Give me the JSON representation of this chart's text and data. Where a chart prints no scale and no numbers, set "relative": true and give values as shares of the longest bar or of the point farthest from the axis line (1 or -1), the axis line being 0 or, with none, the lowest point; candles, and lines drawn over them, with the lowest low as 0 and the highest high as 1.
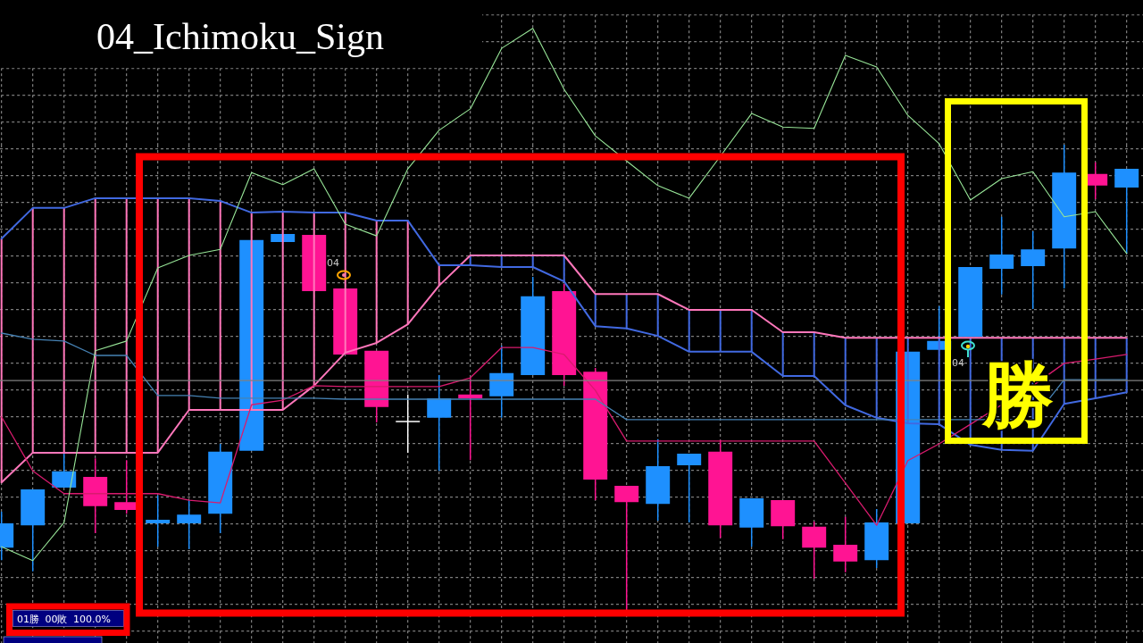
{
  "chart_data": {
    "type": "candlestick",
    "title": "04_Ichimoku_Sign",
    "relative": true,
    "grid": true,
    "categories": [
      null,
      null,
      null,
      null,
      null,
      null,
      null,
      null,
      null,
      null,
      null,
      null,
      null,
      null,
      null,
      null,
      null,
      null,
      null,
      null,
      null,
      null,
      null,
      null,
      null,
      null,
      null,
      null,
      null,
      null,
      null,
      null,
      null,
      null,
      null,
      null,
      null
    ],
    "ohlc": [
      [
        0.134,
        0.211,
        0.107,
        0.186
      ],
      [
        0.182,
        0.259,
        0.083,
        0.259
      ],
      [
        0.263,
        0.338,
        0.263,
        0.298
      ],
      [
        0.286,
        0.326,
        0.165,
        0.223
      ],
      [
        0.232,
        0.322,
        0.207,
        0.215
      ],
      [
        0.186,
        0.246,
        0.136,
        0.194
      ],
      [
        0.186,
        0.236,
        0.131,
        0.205
      ],
      [
        0.207,
        0.357,
        0.165,
        0.34
      ],
      [
        0.342,
        0.795,
        0.342,
        0.795
      ],
      [
        0.791,
        0.808,
        0.791,
        0.808
      ],
      [
        0.806,
        0.806,
        0.685,
        0.685
      ],
      [
        0.691,
        0.691,
        0.549,
        0.549
      ],
      [
        0.557,
        0.557,
        0.403,
        0.436
      ],
      [
        0.405,
        0.463,
        0.338,
        0.405
      ],
      [
        0.413,
        0.505,
        0.299,
        0.455
      ],
      [
        0.463,
        0.499,
        0.322,
        0.455
      ],
      [
        0.459,
        0.568,
        0.413,
        0.509
      ],
      [
        0.505,
        0.716,
        0.505,
        0.674
      ],
      [
        0.685,
        0.701,
        0.482,
        0.505
      ],
      [
        0.512,
        0.52,
        0.236,
        0.28
      ],
      [
        0.267,
        0.267,
        0,
        0.232
      ],
      [
        0.228,
        0.367,
        0.192,
        0.309
      ],
      [
        0.311,
        0.336,
        0.188,
        0.336
      ],
      [
        0.34,
        0.365,
        0.155,
        0.182
      ],
      [
        0.177,
        0.24,
        0.136,
        0.24
      ],
      [
        0.236,
        0.236,
        0.152,
        0.18
      ],
      [
        0.179,
        0.19,
        0.067,
        0.134
      ],
      [
        0.14,
        0.2,
        0.081,
        0.104
      ],
      [
        0.107,
        0.217,
        0.09,
        0.188
      ],
      [
        0.186,
        0.555,
        0.186,
        0.555
      ],
      [
        0.559,
        0.653,
        0.559,
        0.578
      ],
      [
        0.587,
        0.737,
        0.587,
        0.737
      ],
      [
        0.733,
        0.845,
        0.678,
        0.764
      ],
      [
        0.739,
        0.814,
        0.647,
        0.775
      ],
      [
        0.777,
        1,
        0.691,
        0.94
      ],
      [
        0.937,
        0.962,
        0.883,
        0.912
      ],
      [
        0.908,
        0.948,
        0.766,
        0.948
      ]
    ],
    "colors": [
      "#1e90ff",
      "#1e90ff",
      "#1e90ff",
      "#ff1493",
      "#ff1493",
      "#1e90ff",
      "#1e90ff",
      "#1e90ff",
      "#1e90ff",
      "#1e90ff",
      "#ff1493",
      "#ff1493",
      "#ff1493",
      "#ffffff",
      "#1e90ff",
      "#ff1493",
      "#1e90ff",
      "#1e90ff",
      "#ff1493",
      "#ff1493",
      "#ff1493",
      "#1e90ff",
      "#1e90ff",
      "#ff1493",
      "#1e90ff",
      "#ff1493",
      "#ff1493",
      "#ff1493",
      "#1e90ff",
      "#1e90ff",
      "#1e90ff",
      "#1e90ff",
      "#1e90ff",
      "#1e90ff",
      "#1e90ff",
      "#ff1493",
      "#1e90ff"
    ],
    "series": [
      {
        "type": "line",
        "color": "#ff77bb",
        "values": [
          0.274,
          0.338,
          0.338,
          0.338,
          0.338,
          0.338,
          0.43,
          0.43,
          0.43,
          0.43,
          0.482,
          0.553,
          0.574,
          0.614,
          0.697,
          0.762,
          0.762,
          0.762,
          0.762,
          0.679,
          0.679,
          0.679,
          0.645,
          0.645,
          0.645,
          0.597,
          0.597,
          0.585,
          0.585,
          0.585,
          0.585,
          0.585,
          0.585,
          0.585,
          0.585,
          0.585,
          0.585
        ]
      },
      {
        "type": "line",
        "color": "#4169e1",
        "values": [
          0.798,
          0.864,
          0.864,
          0.885,
          0.885,
          0.885,
          0.885,
          0.879,
          0.854,
          0.856,
          0.854,
          0.854,
          0.837,
          0.837,
          0.741,
          0.741,
          0.737,
          0.737,
          0.706,
          0.61,
          0.605,
          0.589,
          0.555,
          0.555,
          0.555,
          0.503,
          0.503,
          0.44,
          0.413,
          0.401,
          0.399,
          0.355,
          0.344,
          0.342,
          0.443,
          0.455,
          0.468
        ]
      },
      {
        "type": "line",
        "color": "#d81b6e",
        "values": [
          0.415,
          0.299,
          0.25,
          0.25,
          0.25,
          0.25,
          0.236,
          0.23,
          0.441,
          0.451,
          0.482,
          0.48,
          0.48,
          0.48,
          0.48,
          0.499,
          0.564,
          0.564,
          0.549,
          0.472,
          0.363,
          0.363,
          0.363,
          0.363,
          0.363,
          0.363,
          0.363,
          0.273,
          0.182,
          0.321,
          0.357,
          0.399,
          0.441,
          0.482,
          0.53,
          0.539,
          0.549
        ]
      },
      {
        "type": "line",
        "color": "#4682b4",
        "values": [
          0.595,
          0.582,
          0.578,
          0.547,
          0.547,
          0.461,
          0.461,
          0.455,
          0.455,
          0.455,
          0.455,
          0.453,
          0.453,
          0.453,
          0.453,
          0.453,
          0.453,
          0.453,
          0.453,
          0.453,
          0.409,
          0.409,
          0.409,
          0.409,
          0.409,
          0.409,
          0.409,
          0.409,
          0.409,
          0.409,
          0.409,
          0.409,
          0.409,
          0.409,
          0.495,
          0.495,
          0.495
        ]
      },
      {
        "type": "line",
        "color": "#98e698",
        "values": [
          0.136,
          0.106,
          0.188,
          0.557,
          0.578,
          0.735,
          0.762,
          0.775,
          0.94,
          0.914,
          0.948,
          0.829,
          0.804,
          0.948,
          1.031,
          1.077,
          1.207,
          1.25,
          1.119,
          1.019,
          0.965,
          0.912,
          0.885,
          0.975,
          1.067,
          1.038,
          1.035,
          1.192,
          1.167,
          1.063,
          1.002,
          0.881,
          0.927,
          0.942,
          0.845,
          0.856,
          0.766
        ]
      },
      {
        "type": "bar",
        "color": "#ff77bb",
        "base": [
          0.274,
          0.338,
          0.338,
          0.338,
          0.338,
          0.338,
          0.43,
          0.43,
          0.43,
          0.43,
          0.482,
          0.553,
          0.574,
          0.614,
          0.697,
          null,
          null,
          null,
          null,
          null,
          null,
          null,
          null,
          null,
          null,
          null,
          null,
          null,
          null,
          null,
          null,
          null,
          null,
          null,
          null,
          null,
          null
        ],
        "values": [
          0.524,
          0.526,
          0.526,
          0.547,
          0.547,
          0.547,
          0.455,
          0.449,
          0.424,
          0.426,
          0.372,
          0.301,
          0.263,
          0.223,
          0.044,
          null,
          null,
          null,
          null,
          null,
          null,
          null,
          null,
          null,
          null,
          null,
          null,
          null,
          null,
          null,
          null,
          null,
          null,
          null,
          null,
          null,
          null
        ]
      },
      {
        "type": "bar",
        "color": "#4169e1",
        "base": [
          null,
          null,
          null,
          null,
          null,
          null,
          null,
          null,
          null,
          null,
          null,
          null,
          null,
          null,
          null,
          0.741,
          0.737,
          0.737,
          0.706,
          0.61,
          0.605,
          0.589,
          0.555,
          0.555,
          0.555,
          0.503,
          0.503,
          0.44,
          0.413,
          0.401,
          0.399,
          0.355,
          0.344,
          0.342,
          0.443,
          0.455,
          0.468
        ],
        "values": [
          null,
          null,
          null,
          null,
          null,
          null,
          null,
          null,
          null,
          null,
          null,
          null,
          null,
          null,
          null,
          0.021,
          0.025,
          0.025,
          0.056,
          0.069,
          0.074,
          0.09,
          0.09,
          0.09,
          0.09,
          0.094,
          0.094,
          0.145,
          0.172,
          0.184,
          0.186,
          0.23,
          0.241,
          0.243,
          0.142,
          0.13,
          0.117
        ]
      }
    ],
    "ref_lines": [
      {
        "axis": "y",
        "value": 0.493,
        "color": "#808080"
      }
    ],
    "annotations": [
      "04",
      "04",
      "勝",
      "01勝 00敗 100.0%"
    ]
  }
}
